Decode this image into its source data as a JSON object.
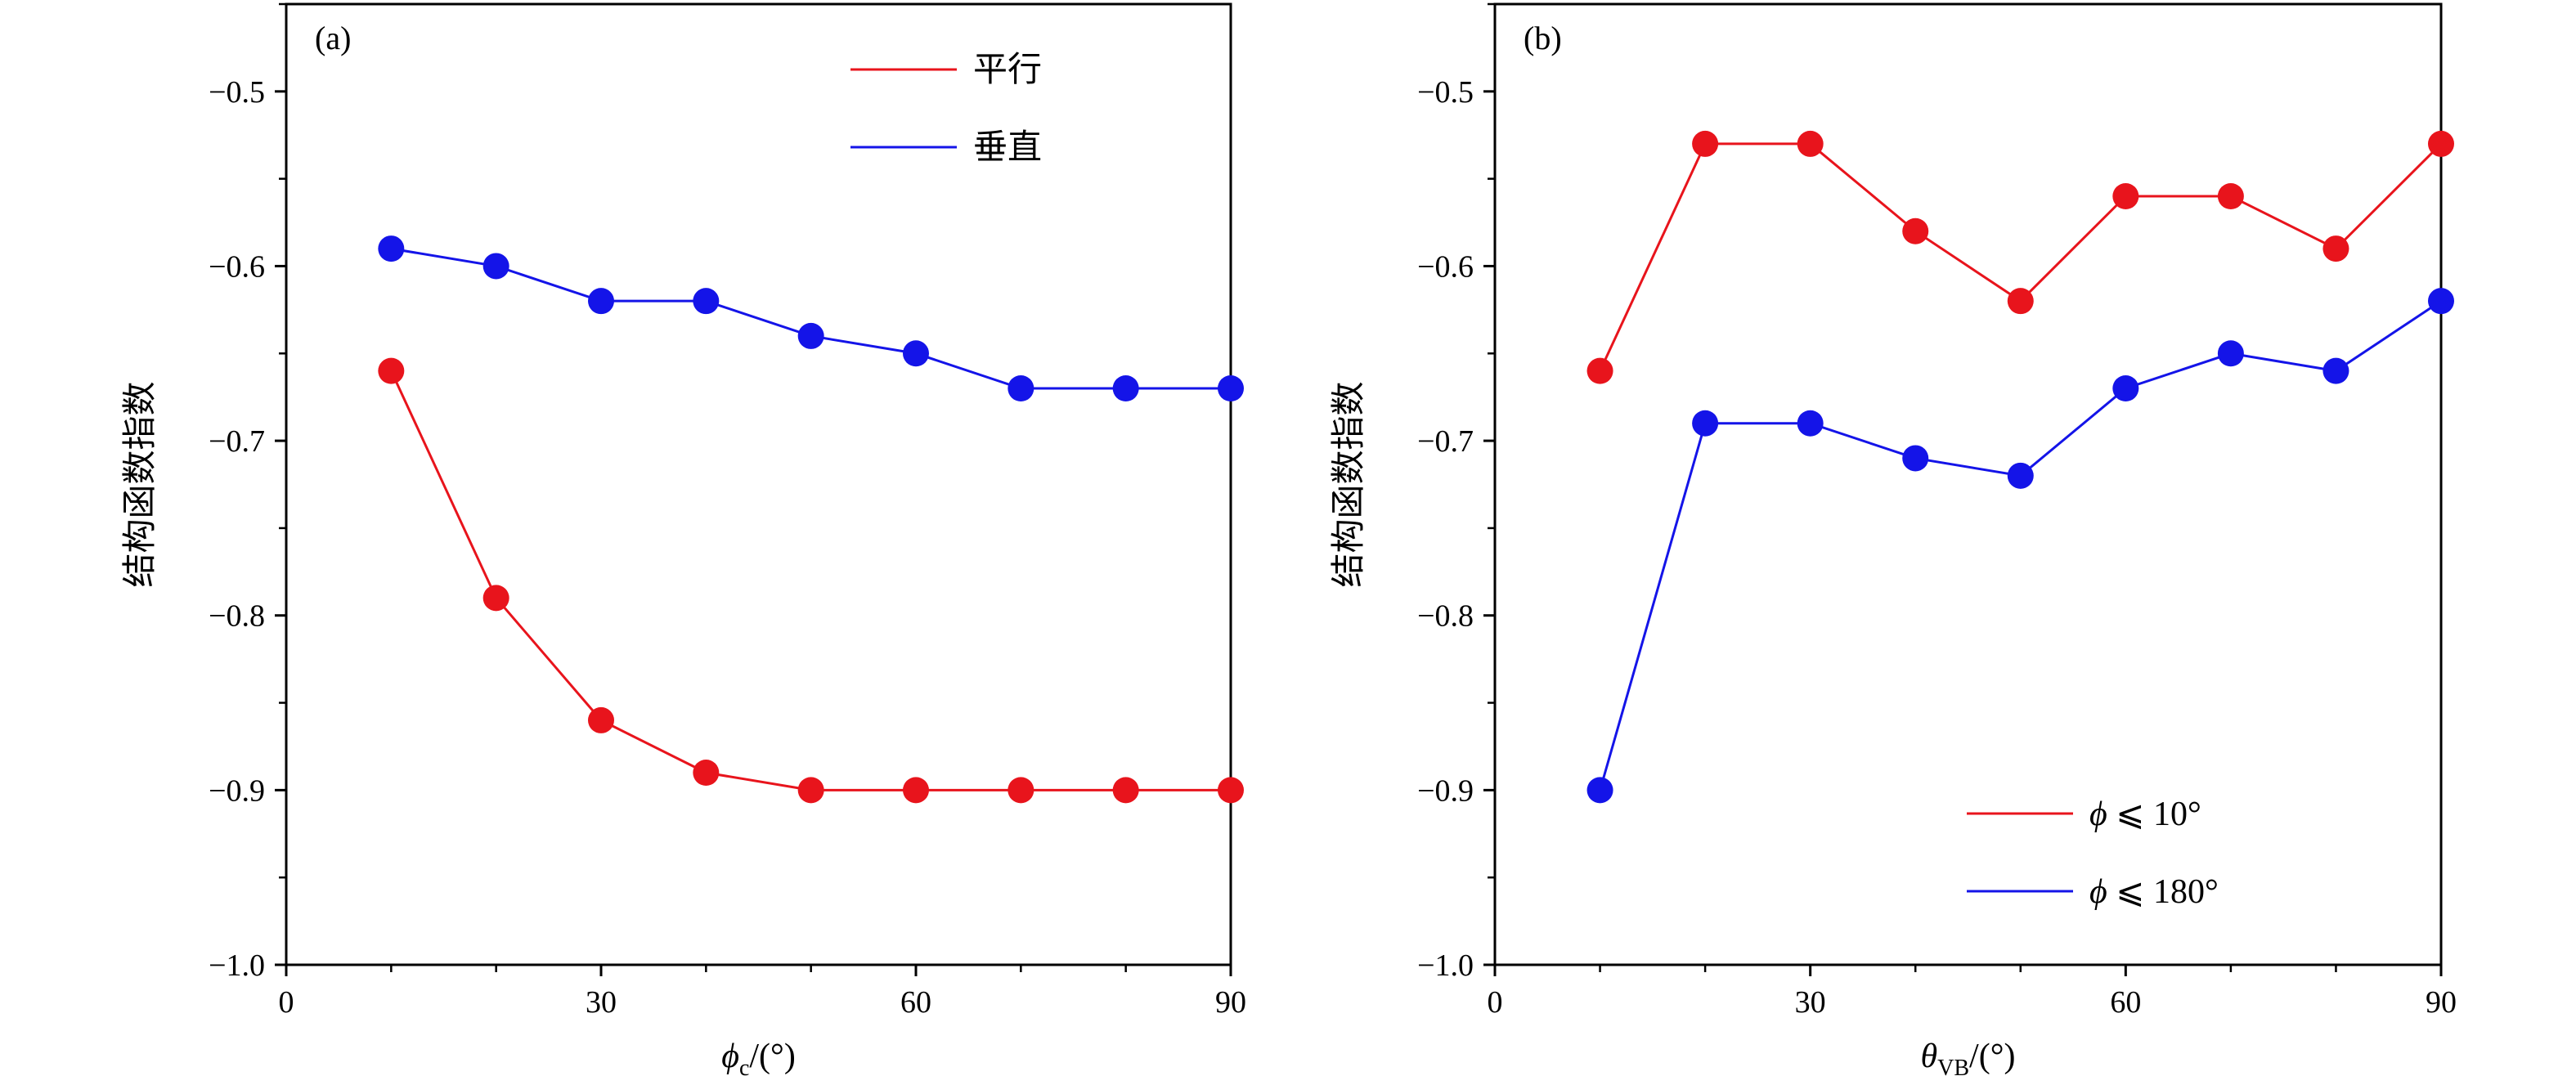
{
  "chart_data": [
    {
      "type": "line",
      "panel_label": "(a)",
      "xlabel_symbol": "ϕ",
      "xlabel_sub": "c",
      "xlabel_suffix": "/(°)",
      "ylabel": "结构函数指数",
      "xlim": [
        0,
        90
      ],
      "ylim": [
        -1.0,
        -0.45
      ],
      "xticks": [
        0,
        30,
        60,
        90
      ],
      "xtick_labels": [
        "0",
        "30",
        "60",
        "90"
      ],
      "xminor": [
        10,
        20,
        40,
        50,
        70,
        80
      ],
      "yticks": [
        -0.5,
        -0.6,
        -0.7,
        -0.8,
        -0.9,
        -1.0
      ],
      "ytick_labels": [
        "−0.5",
        "−0.6",
        "−0.7",
        "−0.8",
        "−0.9",
        "−1.0"
      ],
      "legend_position": "top-right",
      "series": [
        {
          "name": "平行",
          "color": "#e8141c",
          "x": [
            10,
            20,
            30,
            40,
            50,
            60,
            70,
            80,
            90
          ],
          "y": [
            -0.66,
            -0.79,
            -0.86,
            -0.89,
            -0.9,
            -0.9,
            -0.9,
            -0.9,
            -0.9
          ]
        },
        {
          "name": "垂直",
          "color": "#1414e8",
          "x": [
            10,
            20,
            30,
            40,
            50,
            60,
            70,
            80,
            90
          ],
          "y": [
            -0.59,
            -0.6,
            -0.62,
            -0.62,
            -0.64,
            -0.65,
            -0.67,
            -0.67,
            -0.67
          ]
        }
      ]
    },
    {
      "type": "line",
      "panel_label": "(b)",
      "xlabel_symbol": "θ",
      "xlabel_sub": "VB",
      "xlabel_suffix": "/(°)",
      "ylabel": "结构函数指数",
      "xlim": [
        0,
        90
      ],
      "ylim": [
        -1.0,
        -0.45
      ],
      "xticks": [
        0,
        30,
        60,
        90
      ],
      "xtick_labels": [
        "0",
        "30",
        "60",
        "90"
      ],
      "xminor": [
        10,
        20,
        40,
        50,
        70,
        80
      ],
      "yticks": [
        -0.5,
        -0.6,
        -0.7,
        -0.8,
        -0.9,
        -1.0
      ],
      "ytick_labels": [
        "−0.5",
        "−0.6",
        "−0.7",
        "−0.8",
        "−0.9",
        "−1.0"
      ],
      "legend_position": "bottom-right",
      "series": [
        {
          "name": "ϕ ⩽ 10°",
          "color": "#e8141c",
          "x": [
            10,
            20,
            30,
            40,
            50,
            60,
            70,
            80,
            90
          ],
          "y": [
            -0.66,
            -0.53,
            -0.53,
            -0.58,
            -0.62,
            -0.56,
            -0.56,
            -0.59,
            -0.53
          ]
        },
        {
          "name": "ϕ ⩽ 180°",
          "color": "#1414e8",
          "x": [
            10,
            20,
            30,
            40,
            50,
            60,
            70,
            80,
            90
          ],
          "y": [
            -0.9,
            -0.69,
            -0.69,
            -0.71,
            -0.72,
            -0.67,
            -0.65,
            -0.66,
            -0.62
          ]
        }
      ]
    }
  ]
}
